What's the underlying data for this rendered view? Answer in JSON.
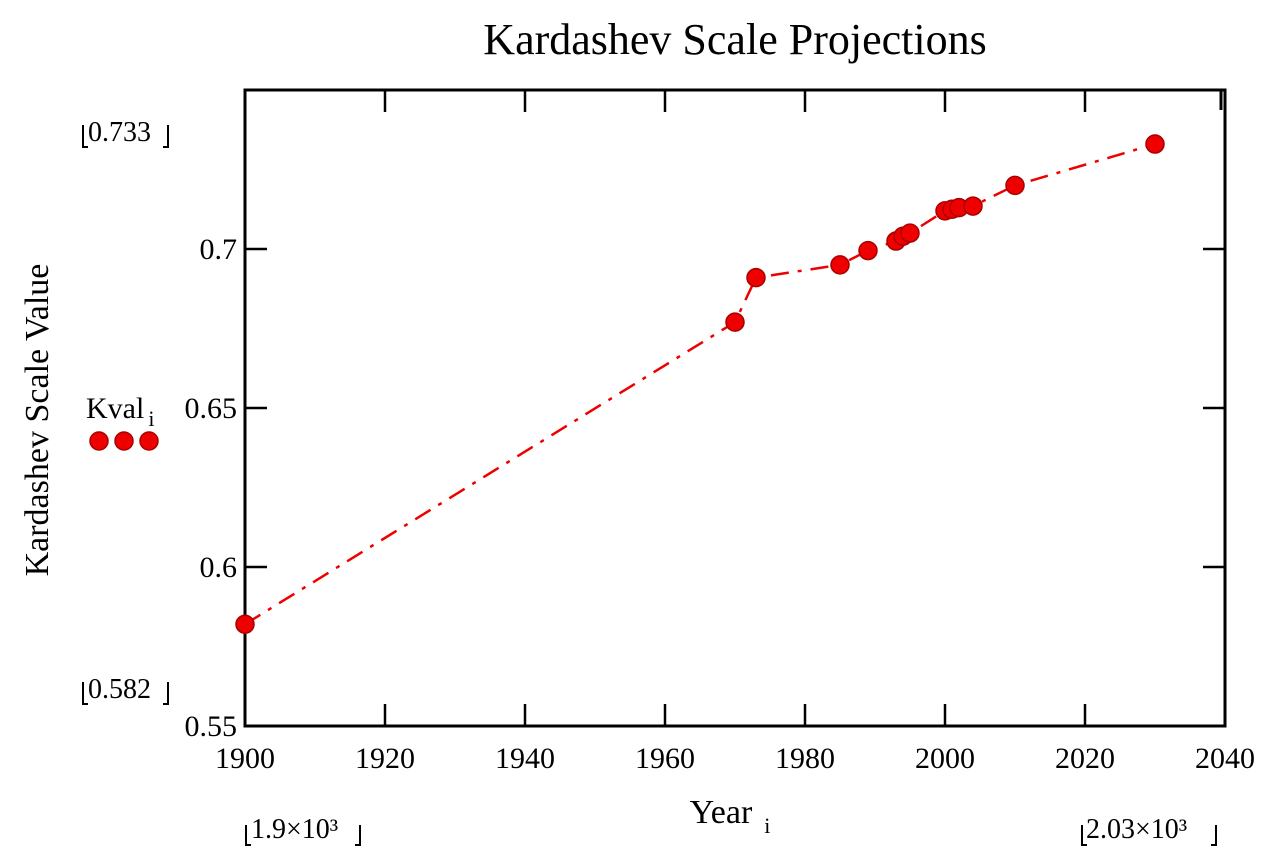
{
  "chart_data": {
    "type": "line",
    "title": "Kardashev Scale Projections",
    "xlabel": "Year",
    "xlabel_sub": "i",
    "ylabel": "Kardashev Scale Value",
    "xlim": [
      1900,
      2040
    ],
    "ylim": [
      0.55,
      0.75
    ],
    "x_ticks": [
      1900,
      1920,
      1940,
      1960,
      1980,
      2000,
      2020,
      2040
    ],
    "x_tick_labels": [
      "1900",
      "1920",
      "1940",
      "1960",
      "1980",
      "2000",
      "2020",
      "2040"
    ],
    "y_ticks": [
      0.55,
      0.6,
      0.65,
      0.7
    ],
    "y_tick_labels": [
      "0.55",
      "0.6",
      "0.65",
      "0.7"
    ],
    "grid": false,
    "series": [
      {
        "name": "Kval",
        "name_sub": "i",
        "color": "#ee0000",
        "line_style": "dashed",
        "marker": "circle",
        "x": [
          1900,
          1970,
          1973,
          1985,
          1989,
          1993,
          1994,
          1995,
          2000,
          2001,
          2002,
          2004,
          2010,
          2030
        ],
        "y": [
          0.582,
          0.677,
          0.691,
          0.695,
          0.6995,
          0.7025,
          0.704,
          0.705,
          0.712,
          0.7125,
          0.713,
          0.7135,
          0.72,
          0.733
        ]
      }
    ],
    "legend_placement": "left",
    "range_readouts": {
      "y_max": "0.733",
      "y_min": "0.582",
      "x_min": "1.9×10³",
      "x_max": "2.03×10³"
    }
  }
}
